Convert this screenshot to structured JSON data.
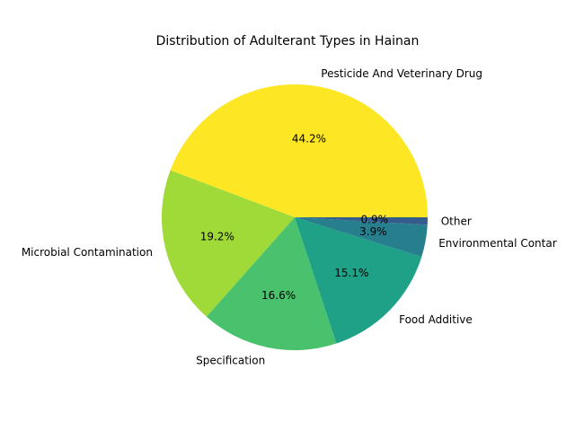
{
  "chart_data": {
    "type": "pie",
    "title": "Distribution of Adulterant Types in Hainan",
    "start_angle_deg": 0,
    "direction": "counterclockwise",
    "slices": [
      {
        "label": "Pesticide And Veterinary Drug",
        "value": 44.2,
        "pct_label": "44.2%",
        "color": "#fde725"
      },
      {
        "label": "Microbial Contamination",
        "value": 19.2,
        "pct_label": "19.2%",
        "color": "#a0da39"
      },
      {
        "label": "Specification",
        "value": 16.6,
        "pct_label": "16.6%",
        "color": "#4ac16d"
      },
      {
        "label": "Food Additive",
        "value": 15.1,
        "pct_label": "15.1%",
        "color": "#1fa187"
      },
      {
        "label": "Environmental Contar",
        "value": 3.9,
        "pct_label": "3.9%",
        "color": "#277f8e"
      },
      {
        "label": "Other",
        "value": 0.9,
        "pct_label": "0.9%",
        "color": "#365c8d"
      }
    ]
  }
}
